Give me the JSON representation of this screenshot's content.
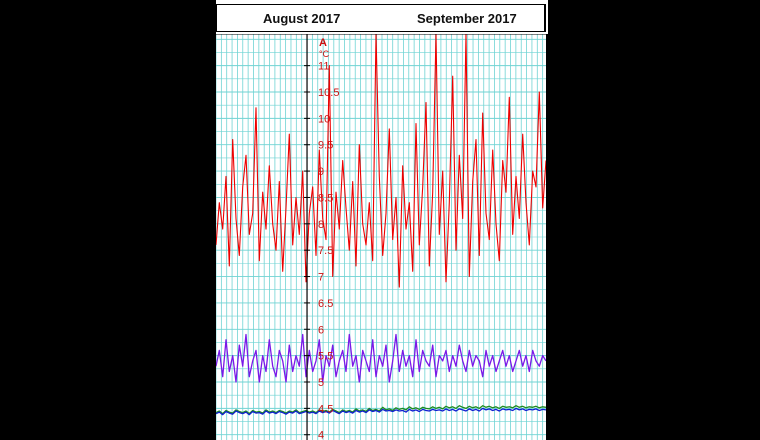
{
  "header": {
    "month_left": "August 2017",
    "month_right": "September 2017"
  },
  "chart_data": {
    "type": "line",
    "x_label_months": [
      "August 2017",
      "September 2017"
    ],
    "y_axis": {
      "label": "A",
      "unit": "°C",
      "ticks": [
        "11",
        "10.5",
        "10",
        "9.5",
        "9",
        "8.5",
        "8",
        "7.5",
        "7",
        "6.5",
        "6",
        "5.5",
        "5",
        "4.5",
        "4"
      ],
      "ylim": [
        3.9,
        11.6
      ]
    },
    "x_range_days": [
      15,
      77
    ],
    "month_boundary_day": 32,
    "grid": true,
    "colors": {
      "grid": "#6fd3d3",
      "axis_labels": "#cc1111",
      "red": "#ee0000",
      "purple": "#7a18e8",
      "green": "#1f8a1f",
      "blue": "#1020d0"
    },
    "series": [
      {
        "color_key": "red",
        "values": [
          7.6,
          8.4,
          7.9,
          8.9,
          7.2,
          9.6,
          8.1,
          7.4,
          8.7,
          9.3,
          7.8,
          8.2,
          10.2,
          7.3,
          8.6,
          7.9,
          9.1,
          8.0,
          7.5,
          8.8,
          7.1,
          8.3,
          9.7,
          7.6,
          8.5,
          7.8,
          9.0,
          6.9,
          8.2,
          8.7,
          7.4,
          9.4,
          8.1,
          7.7,
          11.0,
          7.0,
          8.6,
          7.9,
          9.2,
          8.3,
          7.5,
          8.8,
          7.2,
          9.5,
          8.0,
          7.6,
          8.4,
          7.3,
          11.6,
          8.9,
          7.4,
          8.2,
          9.8,
          7.7,
          8.5,
          6.8,
          9.1,
          7.9,
          8.4,
          7.1,
          9.9,
          7.6,
          8.7,
          10.3,
          7.2,
          8.6,
          11.6,
          7.8,
          9.0,
          6.9,
          8.4,
          10.8,
          7.5,
          9.3,
          8.1,
          11.6,
          7.0,
          8.8,
          9.6,
          7.4,
          10.1,
          8.2,
          7.7,
          9.4,
          8.0,
          7.3,
          9.2,
          8.6,
          10.4,
          7.8,
          8.9,
          8.1,
          9.7,
          8.4,
          7.6,
          9.0,
          8.7,
          10.5,
          8.3,
          9.2
        ]
      },
      {
        "color_key": "purple",
        "values": [
          5.3,
          5.6,
          5.1,
          5.8,
          5.2,
          5.5,
          5.0,
          5.7,
          5.3,
          5.9,
          5.1,
          5.4,
          5.6,
          5.0,
          5.5,
          5.2,
          5.8,
          5.3,
          5.1,
          5.6,
          5.4,
          5.0,
          5.7,
          5.2,
          5.5,
          5.3,
          5.9,
          5.1,
          5.6,
          5.2,
          5.4,
          5.8,
          5.0,
          5.5,
          5.3,
          5.7,
          5.1,
          5.4,
          5.6,
          5.2,
          5.9,
          5.3,
          5.5,
          5.0,
          5.6,
          5.4,
          5.2,
          5.8,
          5.1,
          5.5,
          5.3,
          5.7,
          5.0,
          5.4,
          5.9,
          5.2,
          5.6,
          5.3,
          5.5,
          5.1,
          5.8,
          5.2,
          5.6,
          5.4,
          5.3,
          5.7,
          5.1,
          5.5,
          5.4,
          5.6,
          5.2,
          5.5,
          5.3,
          5.7,
          5.4,
          5.2,
          5.6,
          5.3,
          5.5,
          5.4,
          5.1,
          5.6,
          5.3,
          5.5,
          5.2,
          5.4,
          5.6,
          5.3,
          5.5,
          5.2,
          5.4,
          5.6,
          5.3,
          5.5,
          5.2,
          5.6,
          5.4,
          5.3,
          5.5,
          5.4
        ]
      },
      {
        "color_key": "green",
        "values": [
          4.42,
          4.45,
          4.4,
          4.46,
          4.43,
          4.41,
          4.47,
          4.44,
          4.42,
          4.45,
          4.4,
          4.46,
          4.43,
          4.44,
          4.41,
          4.47,
          4.43,
          4.45,
          4.42,
          4.46,
          4.44,
          4.41,
          4.45,
          4.43,
          4.47,
          4.42,
          4.44,
          4.46,
          4.43,
          4.45,
          4.42,
          4.47,
          4.44,
          4.46,
          4.43,
          4.48,
          4.45,
          4.42,
          4.47,
          4.44,
          4.46,
          4.43,
          4.49,
          4.45,
          4.47,
          4.44,
          4.5,
          4.46,
          4.48,
          4.45,
          4.52,
          4.47,
          4.49,
          4.46,
          4.51,
          4.48,
          4.5,
          4.47,
          4.53,
          4.49,
          4.51,
          4.48,
          4.52,
          4.5,
          4.49,
          4.53,
          4.5,
          4.52,
          4.49,
          4.54,
          4.51,
          4.53,
          4.5,
          4.55,
          4.52,
          4.5,
          4.54,
          4.51,
          4.53,
          4.5,
          4.55,
          4.52,
          4.54,
          4.51,
          4.53,
          4.5,
          4.54,
          4.52,
          4.53,
          4.51,
          4.55,
          4.52,
          4.54,
          4.51,
          4.53,
          4.52,
          4.54,
          4.51,
          4.53,
          4.52
        ]
      },
      {
        "color_key": "blue",
        "values": [
          4.4,
          4.43,
          4.38,
          4.44,
          4.41,
          4.39,
          4.45,
          4.42,
          4.4,
          4.43,
          4.38,
          4.44,
          4.41,
          4.42,
          4.39,
          4.45,
          4.41,
          4.43,
          4.4,
          4.44,
          4.42,
          4.39,
          4.43,
          4.41,
          4.45,
          4.4,
          4.42,
          4.44,
          4.41,
          4.43,
          4.4,
          4.45,
          4.42,
          4.44,
          4.41,
          4.46,
          4.43,
          4.4,
          4.45,
          4.42,
          4.44,
          4.41,
          4.46,
          4.43,
          4.45,
          4.42,
          4.47,
          4.44,
          4.46,
          4.43,
          4.48,
          4.45,
          4.46,
          4.44,
          4.47,
          4.45,
          4.46,
          4.43,
          4.48,
          4.45,
          4.47,
          4.44,
          4.48,
          4.46,
          4.45,
          4.48,
          4.46,
          4.47,
          4.45,
          4.49,
          4.46,
          4.48,
          4.45,
          4.49,
          4.47,
          4.45,
          4.49,
          4.46,
          4.48,
          4.45,
          4.5,
          4.47,
          4.49,
          4.46,
          4.48,
          4.45,
          4.49,
          4.47,
          4.48,
          4.46,
          4.5,
          4.47,
          4.49,
          4.46,
          4.48,
          4.47,
          4.49,
          4.46,
          4.48,
          4.47
        ]
      }
    ]
  }
}
